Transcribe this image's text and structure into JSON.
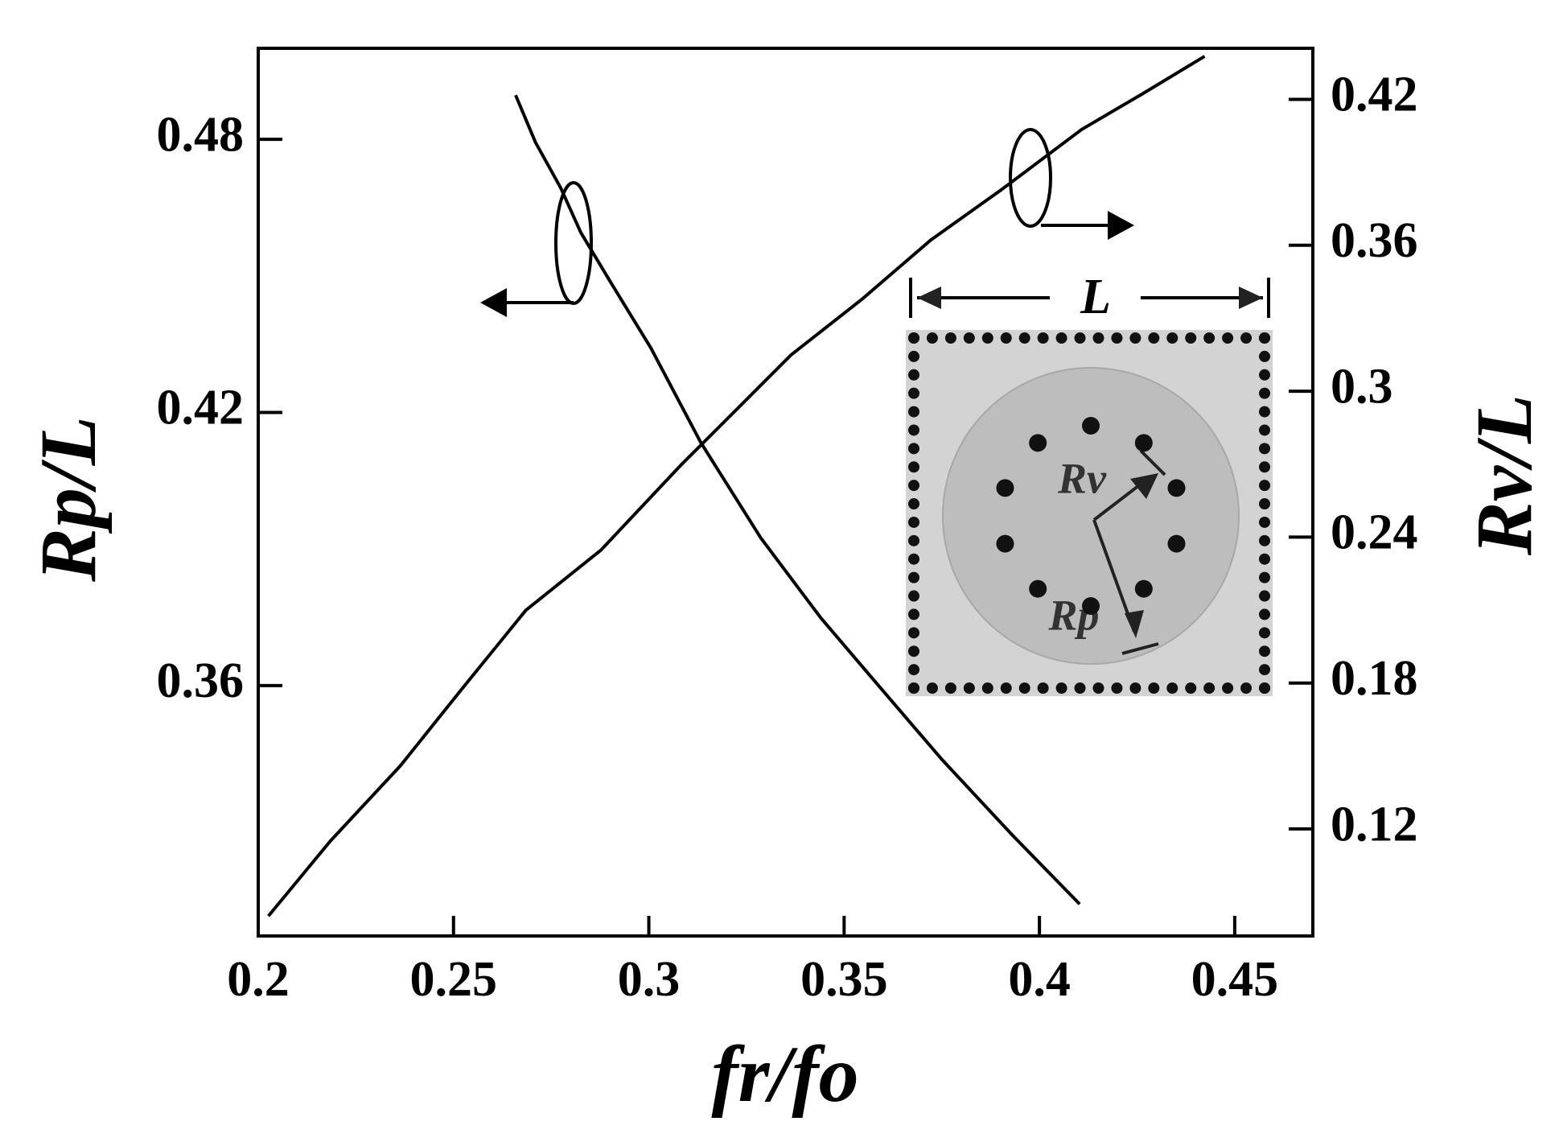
{
  "chart_data": {
    "type": "line",
    "xlabel": "fr/fo",
    "ylabel": "Rp/L",
    "y2label": "Rv/L",
    "xlim": [
      0.2,
      0.47
    ],
    "xticks": [
      0.2,
      0.25,
      0.3,
      0.35,
      0.4,
      0.45
    ],
    "ylim": [
      0.305,
      0.5
    ],
    "yticks": [
      0.36,
      0.42,
      0.48
    ],
    "y2lim": [
      0.076,
      0.441
    ],
    "y2ticks": [
      0.12,
      0.18,
      0.24,
      0.3,
      0.36,
      0.42
    ],
    "series": [
      {
        "name": "Rp/L",
        "color": "#000000",
        "axis": "y",
        "x": [
          0.2659,
          0.271,
          0.2774,
          0.2826,
          0.2903,
          0.3005,
          0.3133,
          0.3287,
          0.3441,
          0.3595,
          0.3749,
          0.3928,
          0.4103
        ],
        "values": [
          0.4897,
          0.4793,
          0.4694,
          0.4595,
          0.4485,
          0.4342,
          0.4134,
          0.3924,
          0.3748,
          0.3593,
          0.3439,
          0.3274,
          0.312
        ]
      },
      {
        "name": "Rv/L",
        "color": "#000000",
        "axis": "y2",
        "x": [
          0.2026,
          0.2185,
          0.2364,
          0.2518,
          0.2685,
          0.2877,
          0.3082,
          0.3236,
          0.3364,
          0.3544,
          0.3723,
          0.3903,
          0.4108,
          0.4262,
          0.4423
        ],
        "values": [
          0.0842,
          0.1151,
          0.146,
          0.1769,
          0.2099,
          0.2346,
          0.2696,
          0.2943,
          0.3149,
          0.3376,
          0.3623,
          0.3829,
          0.4076,
          0.4221,
          0.4377
        ]
      }
    ],
    "annotations": [
      "L",
      "Rv",
      "Rp"
    ]
  }
}
